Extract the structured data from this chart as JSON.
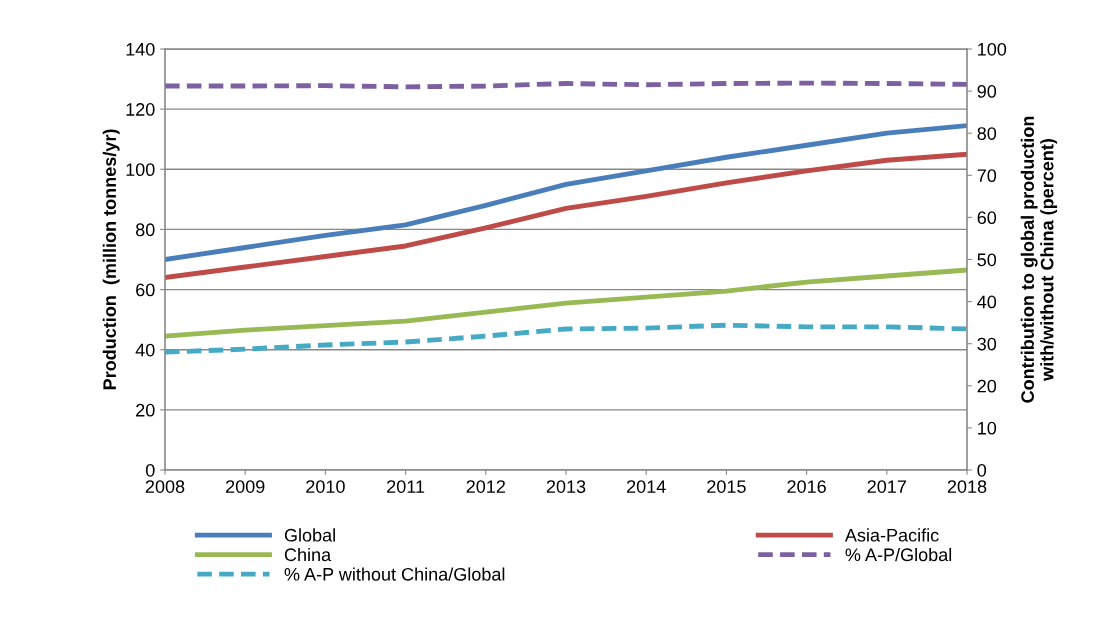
{
  "chart_data": {
    "type": "line",
    "ylabel": "Production  (million tonnes/yr)",
    "y2label": "Contribution to global production\nwith/without China (percent)",
    "x": [
      2008,
      2009,
      2010,
      2011,
      2012,
      2013,
      2014,
      2015,
      2016,
      2017,
      2018
    ],
    "xlim": [
      2008,
      2018
    ],
    "xticks": [
      2008,
      2009,
      2010,
      2011,
      2012,
      2013,
      2014,
      2015,
      2016,
      2017,
      2018
    ],
    "ylim": [
      0,
      140
    ],
    "yticks": [
      0,
      20,
      40,
      60,
      80,
      100,
      120,
      140
    ],
    "y2lim": [
      0,
      100
    ],
    "y2ticks": [
      0,
      10,
      20,
      30,
      40,
      50,
      60,
      70,
      80,
      90,
      100
    ],
    "grid": "y",
    "legend": "bottom",
    "marker": "none",
    "series": [
      {
        "name": "Global",
        "color": "#4a7ebb",
        "line_style": "solid",
        "values": [
          70,
          74,
          78,
          81.5,
          88,
          95,
          99.5,
          104,
          108,
          112,
          114.5
        ]
      },
      {
        "name": "Asia-Pacific",
        "color": "#be4b48",
        "line_style": "solid",
        "values": [
          64,
          67.5,
          71,
          74.5,
          80.5,
          87,
          91,
          95.5,
          99.5,
          103,
          105
        ]
      },
      {
        "name": "China",
        "color": "#98b954",
        "line_style": "solid",
        "values": [
          44.5,
          46.5,
          48,
          49.5,
          52.5,
          55.5,
          57.5,
          59.5,
          62.5,
          64.5,
          66.5
        ]
      },
      {
        "name": "% A-P/Global",
        "color": "#7d60a0",
        "line_style": "dashed",
        "axis": "y2",
        "values": [
          91.2,
          91.2,
          91.3,
          91.0,
          91.2,
          91.8,
          91.5,
          91.8,
          91.9,
          91.8,
          91.6
        ]
      },
      {
        "name": "% A-P without China/Global",
        "color": "#46aac5",
        "line_style": "dashed",
        "axis": "y2",
        "values": [
          28.0,
          28.7,
          29.7,
          30.4,
          31.8,
          33.5,
          33.7,
          34.4,
          34.0,
          34.0,
          33.5
        ]
      }
    ]
  }
}
